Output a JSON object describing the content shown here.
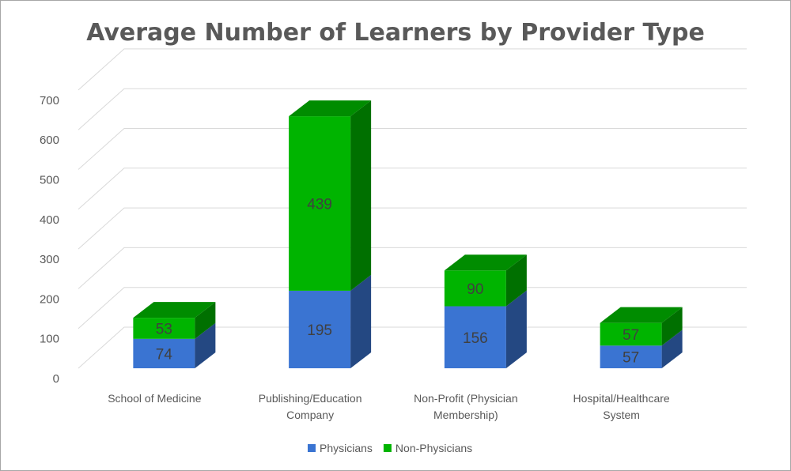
{
  "chart_data": {
    "type": "bar",
    "stacked": true,
    "three_d": true,
    "title": "Average Number of Learners by Provider Type",
    "categories": [
      [
        "School of Medicine"
      ],
      [
        "Publishing/Education",
        "Company"
      ],
      [
        "Non-Profit (Physician",
        "Membership)"
      ],
      [
        "Hospital/Healthcare",
        "System"
      ]
    ],
    "series": [
      {
        "name": "Physicians",
        "values": [
          74,
          195,
          156,
          57
        ],
        "color": "#3a74d2"
      },
      {
        "name": "Non-Physicians",
        "values": [
          53,
          439,
          90,
          57
        ],
        "color": "#00b400"
      }
    ],
    "ylim": [
      0,
      700
    ],
    "yticks": [
      0,
      100,
      200,
      300,
      400,
      500,
      600,
      700
    ],
    "grid": true,
    "legend": "bottom"
  }
}
